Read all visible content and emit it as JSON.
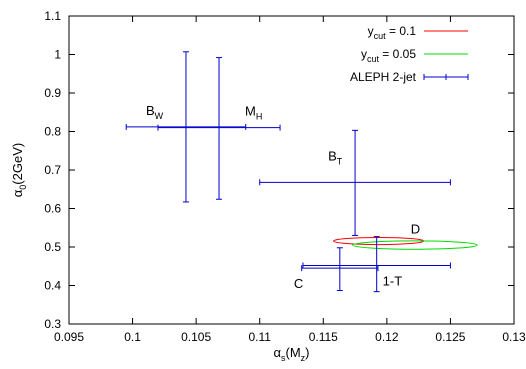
{
  "chart_data": {
    "type": "scatter",
    "xlabel": {
      "base": "α",
      "sub": "s",
      "rest": "(M",
      "sub2": "z",
      "end": ")"
    },
    "ylabel": {
      "base": "α",
      "sub": "0",
      "rest": "(2GeV)"
    },
    "xlim": [
      0.095,
      0.13
    ],
    "ylim": [
      0.3,
      1.1
    ],
    "xticks": [
      0.095,
      0.1,
      0.105,
      0.11,
      0.115,
      0.12,
      0.125,
      0.13
    ],
    "xtick_labels": [
      "0.095",
      "0.1",
      "0.105",
      "0.11",
      "0.115",
      "0.12",
      "0.125",
      "0.13"
    ],
    "yticks": [
      0.3,
      0.4,
      0.5,
      0.6,
      0.7,
      0.8,
      0.9,
      1.0,
      1.1
    ],
    "ytick_labels": [
      "0.3",
      "0.4",
      "0.5",
      "0.6",
      "0.7",
      "0.8",
      "0.9",
      "1",
      "1.1"
    ],
    "legend_position": "top-right",
    "legend": [
      {
        "base": "y",
        "sub": "cut",
        "rest": " =  0.1",
        "color": "#ff0000",
        "kind": "line"
      },
      {
        "base": "y",
        "sub": "cut",
        "rest": " = 0.05",
        "color": "#00dd00",
        "kind": "line"
      },
      {
        "base": "ALEPH 2-jet",
        "sub": "",
        "rest": "",
        "color": "#0000cc",
        "kind": "errorbar"
      }
    ],
    "points": [
      {
        "label": "B",
        "sub": "W",
        "x": 0.1042,
        "y": 0.812,
        "xerr": 0.0047,
        "yerr_up": 0.195,
        "yerr_down": 0.195
      },
      {
        "label": "M",
        "sub": "H",
        "x": 0.1068,
        "y": 0.81,
        "xerr": 0.0048,
        "yerr_up": 0.182,
        "yerr_down": 0.186
      },
      {
        "label": "B",
        "sub": "T",
        "x": 0.1175,
        "y": 0.668,
        "xerr": 0.0075,
        "yerr_up": 0.135,
        "yerr_down": 0.138
      },
      {
        "label": "C",
        "sub": "",
        "x": 0.1163,
        "y": 0.445,
        "xerr": 0.003,
        "yerr_up": 0.053,
        "yerr_down": 0.058
      },
      {
        "label": "1-T",
        "sub": "",
        "x": 0.1192,
        "y": 0.452,
        "xerr": 0.0058,
        "yerr_up": 0.075,
        "yerr_down": 0.068
      }
    ],
    "ellipses": [
      {
        "series": "ycut = 0.1",
        "color": "#ff0000",
        "cx": 0.11935,
        "cy": 0.5155,
        "semi_major": 0.00355,
        "semi_minor": 0.00028,
        "slope": -0.0055
      },
      {
        "series": "ycut = 0.05",
        "color": "#00dd00",
        "cx": 0.1222,
        "cy": 0.505,
        "semi_major": 0.0049,
        "semi_minor": 0.00033,
        "slope": -0.0067
      }
    ],
    "ellipse_label": {
      "text": "D",
      "x": 0.12225,
      "y": 0.535
    }
  }
}
